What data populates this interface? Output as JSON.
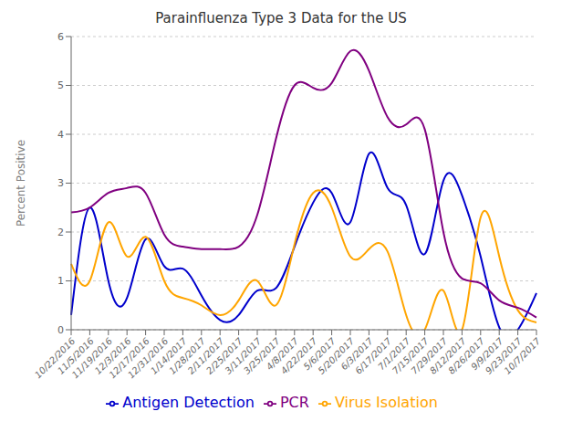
{
  "chart_data": {
    "type": "line",
    "title": "Parainfluenza Type 3 Data for the US",
    "ylabel": "Percent Positive",
    "categories": [
      "10/22/2016",
      "11/5/2016",
      "11/19/2016",
      "12/3/2016",
      "12/17/2016",
      "12/31/2016",
      "1/14/2017",
      "1/28/2017",
      "2/11/2017",
      "2/25/2017",
      "3/11/2017",
      "3/25/2017",
      "4/8/2017",
      "4/22/2017",
      "5/6/2017",
      "5/20/2017",
      "6/3/2017",
      "6/17/2017",
      "7/1/2017",
      "7/15/2017",
      "7/29/2017",
      "8/12/2017",
      "8/26/2017",
      "9/9/2017",
      "9/23/2017",
      "10/7/2017"
    ],
    "series": [
      {
        "name": "Antigen Detection",
        "color": "#0000CC",
        "values": [
          0.3,
          2.5,
          1.0,
          0.65,
          1.85,
          1.3,
          1.25,
          0.7,
          0.2,
          0.3,
          0.8,
          0.85,
          1.7,
          2.6,
          2.8,
          2.2,
          3.6,
          2.9,
          2.55,
          1.55,
          3.05,
          2.75,
          1.5,
          0.05,
          0.0,
          0.75
        ]
      },
      {
        "name": "Virus Isolation",
        "color": "#FFA500",
        "values": [
          1.35,
          1.0,
          2.2,
          1.5,
          1.9,
          1.0,
          0.65,
          0.5,
          0.3,
          0.6,
          1.0,
          0.5,
          1.75,
          2.8,
          2.5,
          1.5,
          1.65,
          1.6,
          0.3,
          0.0,
          0.8,
          0.0,
          2.3,
          1.5,
          0.4,
          0.15
        ]
      },
      {
        "name": "PCR",
        "color": "#800080",
        "values": [
          2.4,
          2.5,
          2.8,
          2.9,
          2.8,
          1.95,
          1.7,
          1.65,
          1.65,
          1.7,
          2.35,
          3.9,
          5.0,
          4.95,
          5.05,
          5.7,
          5.3,
          4.35,
          4.2,
          4.1,
          2.0,
          1.05,
          0.95,
          0.6,
          0.45,
          0.25
        ]
      }
    ],
    "ylim": [
      0,
      6
    ],
    "yticks": [
      0,
      1,
      2,
      3,
      4,
      5,
      6
    ],
    "grid": true,
    "legend": "bottom"
  }
}
